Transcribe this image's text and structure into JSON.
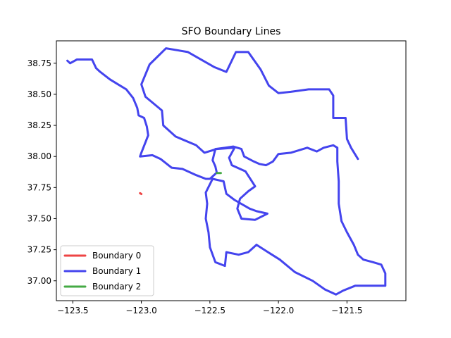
{
  "chart_data": {
    "type": "line",
    "title": "SFO Boundary Lines",
    "xlabel": "",
    "ylabel": "",
    "xlim": [
      -123.62,
      -121.07
    ],
    "ylim": [
      36.84,
      38.93
    ],
    "xticks": [
      -123.5,
      -123.0,
      -122.5,
      -122.0,
      -121.5
    ],
    "xtick_labels": [
      "−123.5",
      "−123.0",
      "−122.5",
      "−122.0",
      "−121.5"
    ],
    "yticks": [
      37.0,
      37.25,
      37.5,
      37.75,
      38.0,
      38.25,
      38.5,
      38.75
    ],
    "ytick_labels": [
      "37.00",
      "37.25",
      "37.50",
      "37.75",
      "38.00",
      "38.25",
      "38.50",
      "38.75"
    ],
    "grid": false,
    "legend_position": "lower-left",
    "series": [
      {
        "name": "Boundary 0",
        "color": "#ee4444",
        "points": [
          [
            -123.01,
            37.705
          ],
          [
            -123.0,
            37.698
          ]
        ]
      },
      {
        "name": "Boundary 1",
        "color": "#4444ee",
        "points": [
          [
            -123.54,
            38.77
          ],
          [
            -123.52,
            38.75
          ],
          [
            -123.47,
            38.78
          ],
          [
            -123.36,
            38.78
          ],
          [
            -123.33,
            38.71
          ],
          [
            -123.3,
            38.68
          ],
          [
            -123.23,
            38.62
          ],
          [
            -123.17,
            38.58
          ],
          [
            -123.11,
            38.54
          ],
          [
            -123.06,
            38.47
          ],
          [
            -123.03,
            38.39
          ],
          [
            -123.02,
            38.33
          ],
          [
            -122.98,
            38.31
          ],
          [
            -122.96,
            38.24
          ],
          [
            -122.95,
            38.17
          ],
          [
            -123.0,
            38.03
          ],
          [
            -123.01,
            38.0
          ],
          [
            -122.92,
            38.01
          ],
          [
            -122.86,
            37.98
          ],
          [
            -122.78,
            37.91
          ],
          [
            -122.7,
            37.9
          ],
          [
            -122.6,
            37.85
          ],
          [
            -122.53,
            37.82
          ],
          [
            -122.5,
            37.82
          ],
          [
            -122.45,
            37.87
          ],
          [
            -122.46,
            37.92
          ],
          [
            -122.48,
            37.97
          ],
          [
            -122.46,
            38.06
          ],
          [
            -122.39,
            38.07
          ],
          [
            -122.33,
            38.08
          ],
          [
            -122.27,
            38.06
          ],
          [
            -122.25,
            38.0
          ],
          [
            -122.18,
            37.96
          ],
          [
            -122.14,
            37.94
          ],
          [
            -122.09,
            37.93
          ],
          [
            -122.04,
            37.96
          ],
          [
            -122.0,
            38.02
          ],
          [
            -121.91,
            38.03
          ],
          [
            -121.79,
            38.07
          ],
          [
            -121.72,
            38.04
          ],
          [
            -121.67,
            38.07
          ],
          [
            -121.6,
            38.09
          ],
          [
            -121.57,
            38.07
          ],
          [
            -121.57,
            37.96
          ],
          [
            -121.56,
            37.8
          ],
          [
            -121.56,
            37.62
          ],
          [
            -121.54,
            37.48
          ],
          [
            -121.5,
            37.39
          ],
          [
            -121.45,
            37.29
          ],
          [
            -121.42,
            37.21
          ],
          [
            -121.38,
            37.17
          ],
          [
            -121.31,
            37.15
          ],
          [
            -121.25,
            37.13
          ],
          [
            -121.22,
            37.06
          ],
          [
            -121.22,
            36.96
          ],
          [
            -121.36,
            36.96
          ],
          [
            -121.44,
            36.96
          ],
          [
            -121.53,
            36.92
          ],
          [
            -121.58,
            36.89
          ],
          [
            -121.66,
            36.93
          ],
          [
            -121.75,
            37.0
          ],
          [
            -121.88,
            37.07
          ],
          [
            -121.99,
            37.17
          ],
          [
            -122.09,
            37.24
          ],
          [
            -122.16,
            37.29
          ],
          [
            -122.22,
            37.23
          ],
          [
            -122.29,
            37.21
          ],
          [
            -122.38,
            37.23
          ],
          [
            -122.39,
            37.12
          ],
          [
            -122.46,
            37.15
          ],
          [
            -122.5,
            37.27
          ],
          [
            -122.51,
            37.39
          ],
          [
            -122.53,
            37.5
          ],
          [
            -122.52,
            37.62
          ],
          [
            -122.53,
            37.71
          ],
          [
            -122.48,
            37.82
          ],
          [
            -122.4,
            37.8
          ],
          [
            -122.38,
            37.7
          ],
          [
            -122.32,
            37.65
          ],
          [
            -122.21,
            37.58
          ],
          [
            -122.16,
            37.56
          ],
          [
            -122.08,
            37.54
          ],
          [
            -122.17,
            37.49
          ],
          [
            -122.27,
            37.5
          ],
          [
            -122.3,
            37.58
          ],
          [
            -122.28,
            37.66
          ],
          [
            -122.22,
            37.72
          ],
          [
            -122.17,
            37.76
          ],
          [
            -122.24,
            37.88
          ],
          [
            -122.34,
            37.93
          ],
          [
            -122.36,
            37.99
          ],
          [
            -122.32,
            38.07
          ],
          [
            -122.45,
            38.06
          ],
          [
            -122.54,
            38.03
          ],
          [
            -122.6,
            38.09
          ],
          [
            -122.75,
            38.16
          ],
          [
            -122.84,
            38.25
          ],
          [
            -122.85,
            38.37
          ],
          [
            -122.97,
            38.48
          ],
          [
            -123.0,
            38.58
          ],
          [
            -122.94,
            38.74
          ],
          [
            -122.82,
            38.87
          ],
          [
            -122.66,
            38.84
          ],
          [
            -122.47,
            38.72
          ],
          [
            -122.38,
            38.68
          ],
          [
            -122.31,
            38.84
          ],
          [
            -122.22,
            38.84
          ],
          [
            -122.13,
            38.7
          ],
          [
            -122.07,
            38.57
          ],
          [
            -122.0,
            38.51
          ],
          [
            -121.91,
            38.52
          ],
          [
            -121.78,
            38.54
          ],
          [
            -121.63,
            38.54
          ],
          [
            -121.6,
            38.49
          ],
          [
            -121.6,
            38.31
          ],
          [
            -121.51,
            38.31
          ],
          [
            -121.5,
            38.14
          ],
          [
            -121.47,
            38.07
          ],
          [
            -121.42,
            37.98
          ]
        ]
      },
      {
        "name": "Boundary 2",
        "color": "#44aa44",
        "points": [
          [
            -122.45,
            37.867
          ],
          [
            -122.42,
            37.867
          ]
        ]
      }
    ]
  }
}
